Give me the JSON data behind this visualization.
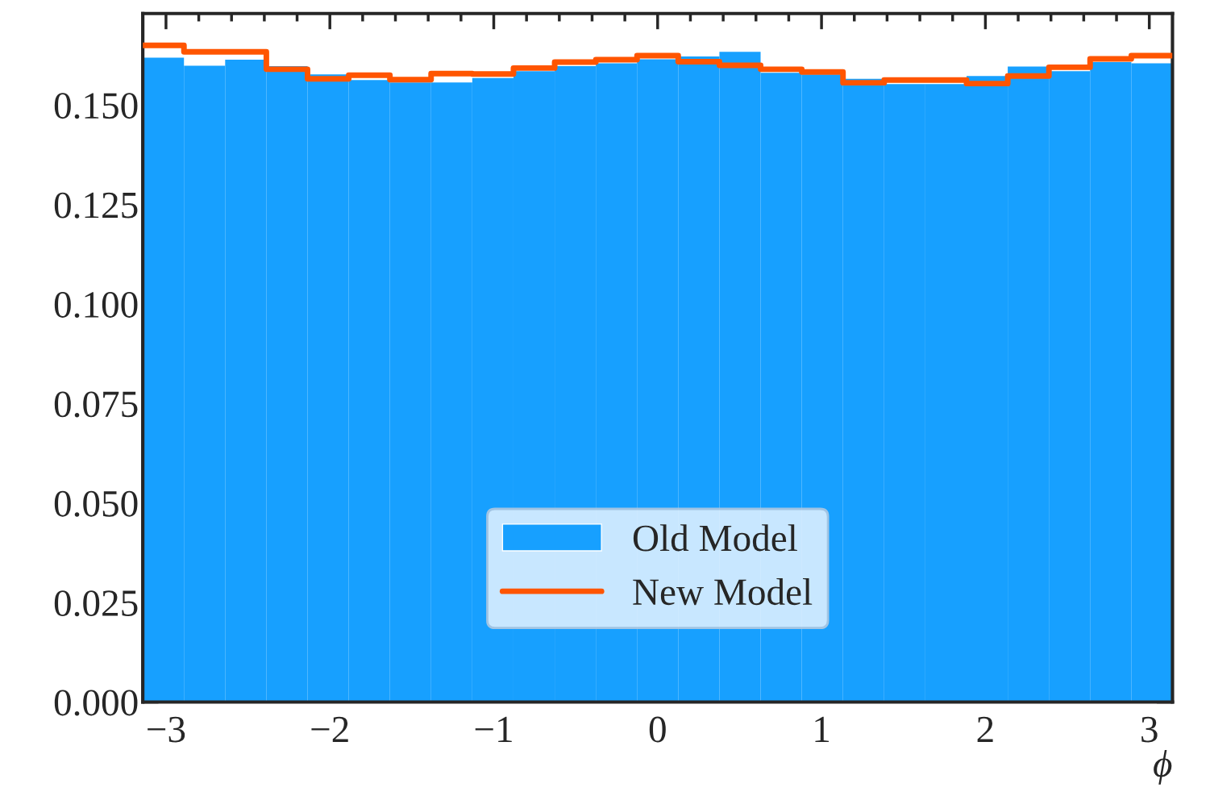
{
  "chart_data": {
    "type": "histogram",
    "xlabel": "ϕ",
    "bins": [
      -3.1416,
      -2.8903,
      -2.6389,
      -2.3876,
      -2.1363,
      -1.885,
      -1.6336,
      -1.3823,
      -1.131,
      -0.8796,
      -0.6283,
      -0.377,
      -0.1257,
      0.1257,
      0.377,
      0.6283,
      0.8796,
      1.131,
      1.3823,
      1.6336,
      1.885,
      2.1363,
      2.3876,
      2.6389,
      2.8903,
      3.1416
    ],
    "series": [
      {
        "name": "Old Model",
        "color": "#17a0ff",
        "values": [
          0.1619,
          0.1599,
          0.1614,
          0.1598,
          0.1577,
          0.1563,
          0.1557,
          0.1557,
          0.1568,
          0.1585,
          0.1598,
          0.1605,
          0.1615,
          0.1622,
          0.1634,
          0.1581,
          0.1577,
          0.1566,
          0.1553,
          0.1553,
          0.1573,
          0.1597,
          0.1585,
          0.1608,
          0.1605
        ]
      },
      {
        "name": "New Model",
        "type": "step",
        "color": "#ff5500",
        "x": [
          -3.1416,
          -2.8903,
          -2.6389,
          -2.3876,
          -2.1363,
          -1.885,
          -1.6336,
          -1.3823,
          -1.131,
          -0.8796,
          -0.6283,
          -0.377,
          -0.1257,
          0.1257,
          0.377,
          0.6283,
          0.8796,
          1.131,
          1.3823,
          1.6336,
          1.885,
          2.1363,
          2.3876,
          2.6389,
          2.8903,
          3.1416
        ],
        "values": [
          0.165,
          0.1634,
          0.1634,
          0.159,
          0.1566,
          0.1575,
          0.1564,
          0.1579,
          0.1578,
          0.1593,
          0.1608,
          0.1614,
          0.1624,
          0.1609,
          0.16,
          0.159,
          0.1583,
          0.1556,
          0.1563,
          0.1563,
          0.1554,
          0.1573,
          0.1595,
          0.1616,
          0.1624,
          0.1624
        ]
      }
    ],
    "xlim": [
      -3.1416,
      3.1416
    ],
    "ylim": [
      0,
      0.173
    ],
    "xticks": [
      {
        "value": -3,
        "label": "−3"
      },
      {
        "value": -2,
        "label": "−2"
      },
      {
        "value": -1,
        "label": "−1"
      },
      0,
      1,
      2,
      3
    ],
    "yticks": [
      {
        "value": 0,
        "label": "0.000"
      },
      {
        "value": 0.025,
        "label": "0.025"
      },
      {
        "value": 0.05,
        "label": "0.050"
      },
      {
        "value": 0.075,
        "label": "0.075"
      },
      {
        "value": 0.1,
        "label": "0.100"
      },
      {
        "value": 0.125,
        "label": "0.125"
      },
      {
        "value": 0.15,
        "label": "0.150"
      }
    ],
    "grid": false,
    "legend": "bottom"
  }
}
